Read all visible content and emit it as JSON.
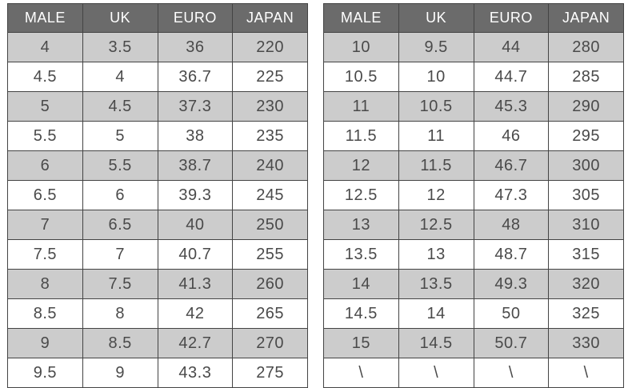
{
  "tables": [
    {
      "header": [
        "MALE",
        "UK",
        "EURO",
        "JAPAN"
      ],
      "rows": [
        [
          "4",
          "3.5",
          "36",
          "220"
        ],
        [
          "4.5",
          "4",
          "36.7",
          "225"
        ],
        [
          "5",
          "4.5",
          "37.3",
          "230"
        ],
        [
          "5.5",
          "5",
          "38",
          "235"
        ],
        [
          "6",
          "5.5",
          "38.7",
          "240"
        ],
        [
          "6.5",
          "6",
          "39.3",
          "245"
        ],
        [
          "7",
          "6.5",
          "40",
          "250"
        ],
        [
          "7.5",
          "7",
          "40.7",
          "255"
        ],
        [
          "8",
          "7.5",
          "41.3",
          "260"
        ],
        [
          "8.5",
          "8",
          "42",
          "265"
        ],
        [
          "9",
          "8.5",
          "42.7",
          "270"
        ],
        [
          "9.5",
          "9",
          "43.3",
          "275"
        ]
      ]
    },
    {
      "header": [
        "MALE",
        "UK",
        "EURO",
        "JAPAN"
      ],
      "rows": [
        [
          "10",
          "9.5",
          "44",
          "280"
        ],
        [
          "10.5",
          "10",
          "44.7",
          "285"
        ],
        [
          "11",
          "10.5",
          "45.3",
          "290"
        ],
        [
          "11.5",
          "11",
          "46",
          "295"
        ],
        [
          "12",
          "11.5",
          "46.7",
          "300"
        ],
        [
          "12.5",
          "12",
          "47.3",
          "305"
        ],
        [
          "13",
          "12.5",
          "48",
          "310"
        ],
        [
          "13.5",
          "13",
          "48.7",
          "315"
        ],
        [
          "14",
          "13.5",
          "49.3",
          "320"
        ],
        [
          "14.5",
          "14",
          "50",
          "325"
        ],
        [
          "15",
          "14.5",
          "50.7",
          "330"
        ],
        [
          "\\",
          "\\",
          "\\",
          "\\"
        ]
      ]
    }
  ]
}
